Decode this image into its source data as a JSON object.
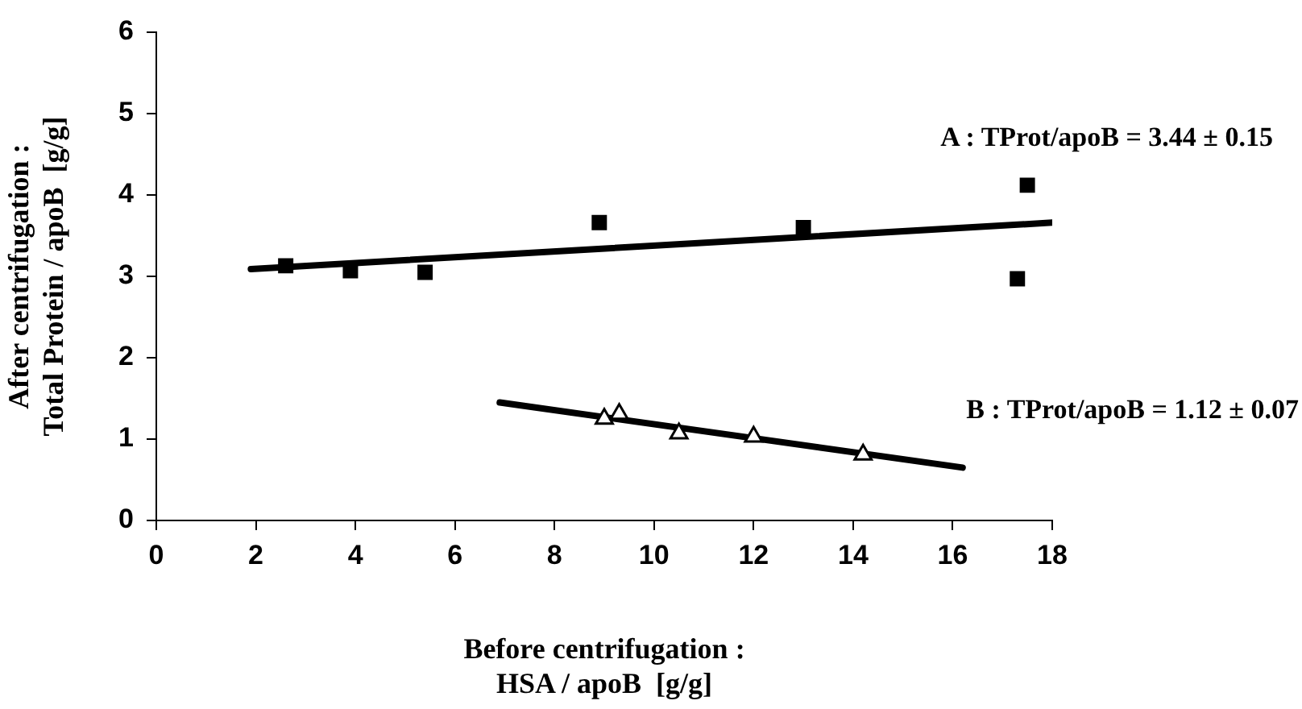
{
  "chart_data": {
    "type": "scatter",
    "xlabel": "Before centrifugation :\nHSA / apoB  [g/g]",
    "ylabel": "After centrifugation :\nTotal Protein / apoB  [g/g]",
    "xlim": [
      0,
      18
    ],
    "xticks": [
      0,
      2,
      4,
      6,
      8,
      10,
      12,
      14,
      16,
      18
    ],
    "ylim": [
      0,
      6
    ],
    "yticks": [
      0,
      1,
      2,
      3,
      4,
      5,
      6
    ],
    "grid": false,
    "legend": false,
    "series": [
      {
        "marker": "square",
        "color": "#000000",
        "x": [
          2.6,
          3.9,
          5.4,
          8.9,
          13.0,
          17.5,
          17.3
        ],
        "values": [
          3.13,
          3.07,
          3.05,
          3.66,
          3.6,
          4.12,
          2.97
        ]
      },
      {
        "marker": "triangle",
        "color": "#000000",
        "x": [
          9.0,
          9.3,
          10.5,
          12.0,
          14.2
        ],
        "values": [
          1.25,
          1.31,
          1.07,
          1.03,
          0.81
        ]
      },
      {
        "type": "line",
        "marker": "none",
        "line_style": "solid",
        "color": "#000000",
        "x": [
          1.9,
          18.0
        ],
        "values": [
          3.09,
          3.66
        ]
      },
      {
        "type": "line",
        "marker": "none",
        "line_style": "solid",
        "color": "#000000",
        "x": [
          6.9,
          16.2
        ],
        "values": [
          1.45,
          0.65
        ]
      }
    ],
    "annotations": [
      "A : TProt/apoB = 3.44 ± 0.15",
      "B : TProt/apoB = 1.12 ± 0.07"
    ]
  }
}
